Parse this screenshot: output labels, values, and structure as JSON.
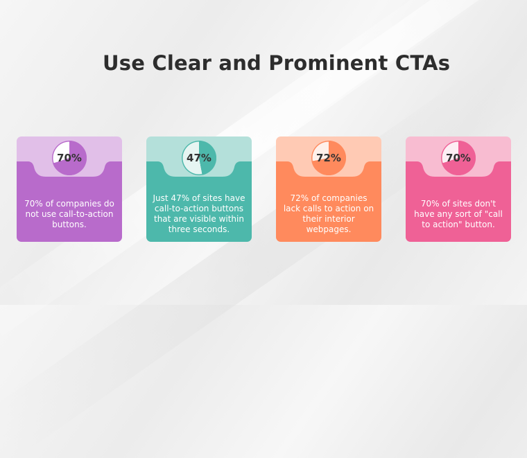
{
  "title": "Use Clear and Prominent CTAs",
  "cards": [
    {
      "percent_label": "70%",
      "value": 70,
      "text": "70% of companies do not use call-to-action buttons.",
      "colors": {
        "top": "#e1bfe8",
        "bottom": "#b86bcb",
        "pie_fill": "#b86bcb",
        "pie_empty": "#ffffff"
      }
    },
    {
      "percent_label": "47%",
      "value": 47,
      "text": "Just 47% of sites have call-to-action buttons that are visible within three seconds.",
      "colors": {
        "top": "#b4e0da",
        "bottom": "#4db8ab",
        "pie_fill": "#4db8ab",
        "pie_empty": "#e6f5f2"
      }
    },
    {
      "percent_label": "72%",
      "value": 72,
      "text": "72% of companies lack calls to action on their interior webpages.",
      "colors": {
        "top": "#ffcab4",
        "bottom": "#ff8a5d",
        "pie_fill": "#ff8a5d",
        "pie_empty": "#fff0ea"
      }
    },
    {
      "percent_label": "70%",
      "value": 70,
      "text": "70% of sites don't have any sort of \"call to action\" button.",
      "colors": {
        "top": "#f8bcd1",
        "bottom": "#ef6196",
        "pie_fill": "#ef6196",
        "pie_empty": "#fdeef4"
      }
    }
  ]
}
